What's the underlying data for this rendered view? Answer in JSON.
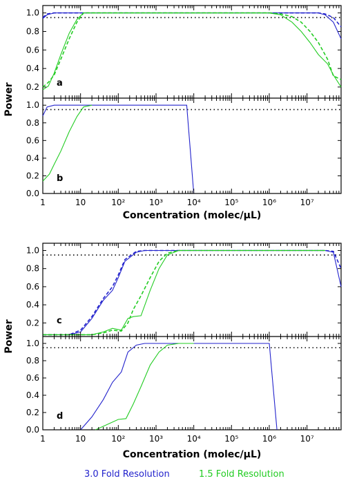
{
  "chart_data": [
    {
      "type": "line",
      "panel": "a",
      "xscale": "log",
      "xlim": [
        1,
        80000000
      ],
      "ylim": [
        0.08,
        1.08
      ],
      "y_ticks": [
        0.2,
        0.4,
        0.6,
        0.8,
        1.0
      ],
      "threshold": 0.95,
      "series": [
        {
          "name": "3.0 Fold Resolution",
          "style": "solid",
          "color": "#2222cc",
          "x": [
            1,
            1.3,
            2,
            5,
            10,
            100,
            1000000.0,
            10000000.0,
            20000000.0,
            30000000.0,
            50000000.0,
            80000000.0
          ],
          "y": [
            0.94,
            0.98,
            1.0,
            1.0,
            1.0,
            1.0,
            1.0,
            1.0,
            1.0,
            0.98,
            0.9,
            0.72
          ]
        },
        {
          "name": "3.0 Fold Resolution",
          "style": "dashed",
          "color": "#2222cc",
          "x": [
            1,
            1.3,
            2,
            5,
            10,
            100,
            1000000.0,
            10000000.0,
            20000000.0,
            30000000.0,
            50000000.0,
            80000000.0
          ],
          "y": [
            0.95,
            0.99,
            1.0,
            1.0,
            1.0,
            1.0,
            1.0,
            1.0,
            1.0,
            0.99,
            0.95,
            0.85
          ]
        },
        {
          "name": "1.5 Fold Resolution",
          "style": "solid",
          "color": "#22cc22",
          "x": [
            1,
            1.4,
            2,
            3,
            5,
            8,
            12,
            20,
            100,
            1000000.0,
            2000000.0,
            4000000.0,
            7000000.0,
            12000000.0,
            20000000.0,
            35000000.0,
            50000000.0,
            80000000.0
          ],
          "y": [
            0.17,
            0.21,
            0.35,
            0.55,
            0.78,
            0.93,
            1.0,
            1.0,
            1.0,
            1.0,
            0.98,
            0.9,
            0.8,
            0.68,
            0.55,
            0.45,
            0.33,
            0.2
          ]
        },
        {
          "name": "1.5 Fold Resolution",
          "style": "dashed",
          "color": "#22cc22",
          "x": [
            1,
            1.4,
            2,
            3,
            5,
            8,
            12,
            20,
            100,
            1000000.0,
            2000000.0,
            4000000.0,
            7000000.0,
            12000000.0,
            20000000.0,
            35000000.0,
            50000000.0,
            80000000.0
          ],
          "y": [
            0.2,
            0.25,
            0.33,
            0.5,
            0.72,
            0.9,
            1.0,
            1.0,
            1.0,
            1.0,
            0.99,
            0.96,
            0.9,
            0.8,
            0.68,
            0.5,
            0.32,
            0.28
          ]
        }
      ]
    },
    {
      "type": "line",
      "panel": "b",
      "xscale": "log",
      "xlim": [
        1,
        80000000
      ],
      "ylim": [
        0.0,
        1.08
      ],
      "y_ticks": [
        0.0,
        0.2,
        0.4,
        0.6,
        0.8,
        1.0
      ],
      "threshold": 0.95,
      "series": [
        {
          "name": "3.0 Fold Resolution",
          "style": "solid",
          "color": "#2222cc",
          "x": [
            1,
            1.3,
            2,
            100,
            1000,
            6500,
            10000
          ],
          "y": [
            0.88,
            0.98,
            1.0,
            1.0,
            1.0,
            1.0,
            0.0
          ]
        },
        {
          "name": "1.5 Fold Resolution",
          "style": "solid",
          "color": "#22cc22",
          "x": [
            1,
            1.5,
            2,
            3,
            5,
            8,
            12,
            20
          ],
          "y": [
            0.14,
            0.22,
            0.33,
            0.48,
            0.7,
            0.87,
            0.98,
            1.0
          ]
        }
      ]
    },
    {
      "type": "line",
      "panel": "c",
      "xscale": "log",
      "xlim": [
        1,
        80000000
      ],
      "ylim": [
        0.05,
        1.08
      ],
      "y_ticks": [
        0.2,
        0.4,
        0.6,
        0.8,
        1.0
      ],
      "threshold": 0.95,
      "series": [
        {
          "name": "3.0 Fold Resolution",
          "style": "solid",
          "color": "#2222cc",
          "x": [
            1,
            5,
            10,
            20,
            40,
            70,
            100,
            150,
            300,
            500,
            1000,
            100000.0,
            1000000.0,
            10000000.0,
            30000000.0,
            50000000.0,
            80000000.0
          ],
          "y": [
            0.07,
            0.07,
            0.1,
            0.25,
            0.45,
            0.56,
            0.7,
            0.88,
            0.98,
            1.0,
            1.0,
            1.0,
            1.0,
            1.0,
            1.0,
            0.98,
            0.6
          ]
        },
        {
          "name": "3.0 Fold Resolution",
          "style": "dashed",
          "color": "#2222cc",
          "x": [
            1,
            5,
            10,
            20,
            40,
            70,
            100,
            150,
            300,
            500,
            1000,
            100000.0,
            1000000.0,
            10000000.0,
            30000000.0,
            50000000.0,
            80000000.0
          ],
          "y": [
            0.07,
            0.07,
            0.12,
            0.27,
            0.47,
            0.6,
            0.73,
            0.9,
            0.99,
            1.0,
            1.0,
            1.0,
            1.0,
            1.0,
            1.0,
            0.99,
            0.8
          ]
        },
        {
          "name": "1.5 Fold Resolution",
          "style": "solid",
          "color": "#22cc22",
          "x": [
            1,
            20,
            40,
            70,
            120,
            180,
            250,
            400,
            700,
            1200,
            2000,
            4000,
            100000.0,
            10000000.0,
            30000000.0
          ],
          "y": [
            0.07,
            0.07,
            0.1,
            0.14,
            0.12,
            0.25,
            0.27,
            0.28,
            0.56,
            0.8,
            0.95,
            1.0,
            1.0,
            1.0,
            1.0
          ]
        },
        {
          "name": "1.5 Fold Resolution",
          "style": "dashed",
          "color": "#22cc22",
          "x": [
            1,
            20,
            40,
            70,
            120,
            180,
            250,
            400,
            700,
            1200,
            2000,
            4000,
            100000.0,
            10000000.0,
            30000000.0
          ],
          "y": [
            0.07,
            0.07,
            0.09,
            0.12,
            0.11,
            0.2,
            0.35,
            0.5,
            0.7,
            0.88,
            0.97,
            1.0,
            1.0,
            1.0,
            1.0
          ]
        }
      ]
    },
    {
      "type": "line",
      "panel": "d",
      "xscale": "log",
      "xlim": [
        1,
        80000000
      ],
      "ylim": [
        0.0,
        1.08
      ],
      "y_ticks": [
        0.0,
        0.2,
        0.4,
        0.6,
        0.8,
        1.0
      ],
      "threshold": 0.95,
      "series": [
        {
          "name": "3.0 Fold Resolution",
          "style": "solid",
          "color": "#2222cc",
          "x": [
            10,
            20,
            40,
            70,
            120,
            180,
            300,
            500,
            1000,
            100000.0,
            1000000.0,
            1600000.0
          ],
          "y": [
            0.0,
            0.15,
            0.35,
            0.55,
            0.67,
            0.9,
            0.98,
            1.0,
            1.0,
            1.0,
            1.0,
            0.0
          ]
        },
        {
          "name": "1.5 Fold Resolution",
          "style": "solid",
          "color": "#22cc22",
          "x": [
            25,
            50,
            100,
            160,
            250,
            400,
            700,
            1200,
            2000,
            4000,
            10000.0
          ],
          "y": [
            0.0,
            0.06,
            0.12,
            0.13,
            0.3,
            0.5,
            0.75,
            0.9,
            0.98,
            1.0,
            1.0
          ]
        }
      ]
    }
  ],
  "axis": {
    "ylabel": "Power",
    "xlabel": "Concentration (molec/µL)",
    "x_tick_labels": [
      "1",
      "10",
      "10²",
      "10³",
      "10⁴",
      "10⁵",
      "10⁶",
      "10⁷"
    ]
  },
  "panels": {
    "a": "a",
    "b": "b",
    "c": "c",
    "d": "d"
  },
  "legend": [
    {
      "label": "3.0 Fold Resolution",
      "color": "#2222cc"
    },
    {
      "label": "1.5 Fold Resolution",
      "color": "#22cc22"
    }
  ]
}
